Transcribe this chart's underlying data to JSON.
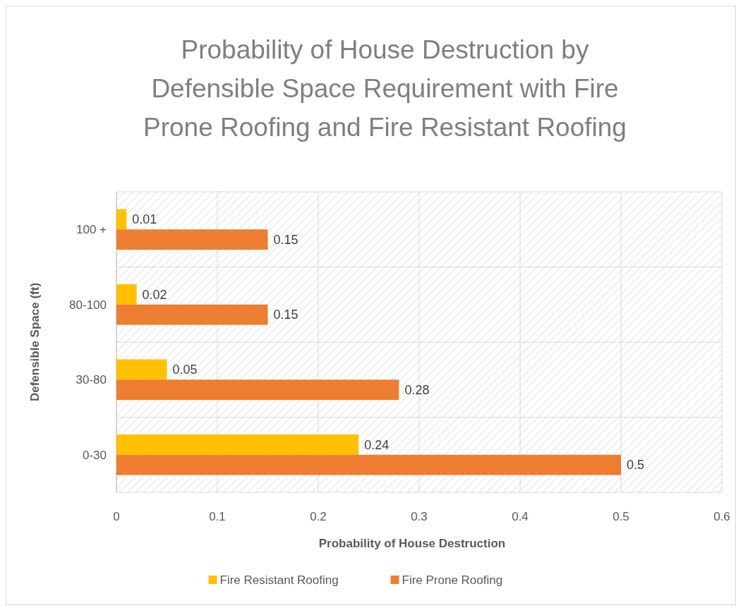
{
  "chart_data": {
    "type": "bar",
    "orientation": "horizontal",
    "title": "Probability of House Destruction by Defensible Space Requirement with Fire Prone Roofing and Fire Resistant Roofing",
    "xlabel": "Probability of House Destruction",
    "ylabel": "Defensible Space (ft)",
    "categories": [
      "100 +",
      "80-100",
      "30-80",
      "0-30"
    ],
    "series": [
      {
        "name": "Fire Resistant Roofing",
        "color": "#ffc000",
        "values": [
          0.01,
          0.02,
          0.05,
          0.24
        ]
      },
      {
        "name": "Fire Prone Roofing",
        "color": "#ed7d31",
        "values": [
          0.15,
          0.15,
          0.28,
          0.5
        ]
      }
    ],
    "xlim": [
      0,
      0.6
    ],
    "xticks": [
      0,
      0.1,
      0.2,
      0.3,
      0.4,
      0.5,
      0.6
    ],
    "grid": true,
    "legend": "bottom",
    "data_labels": true
  }
}
